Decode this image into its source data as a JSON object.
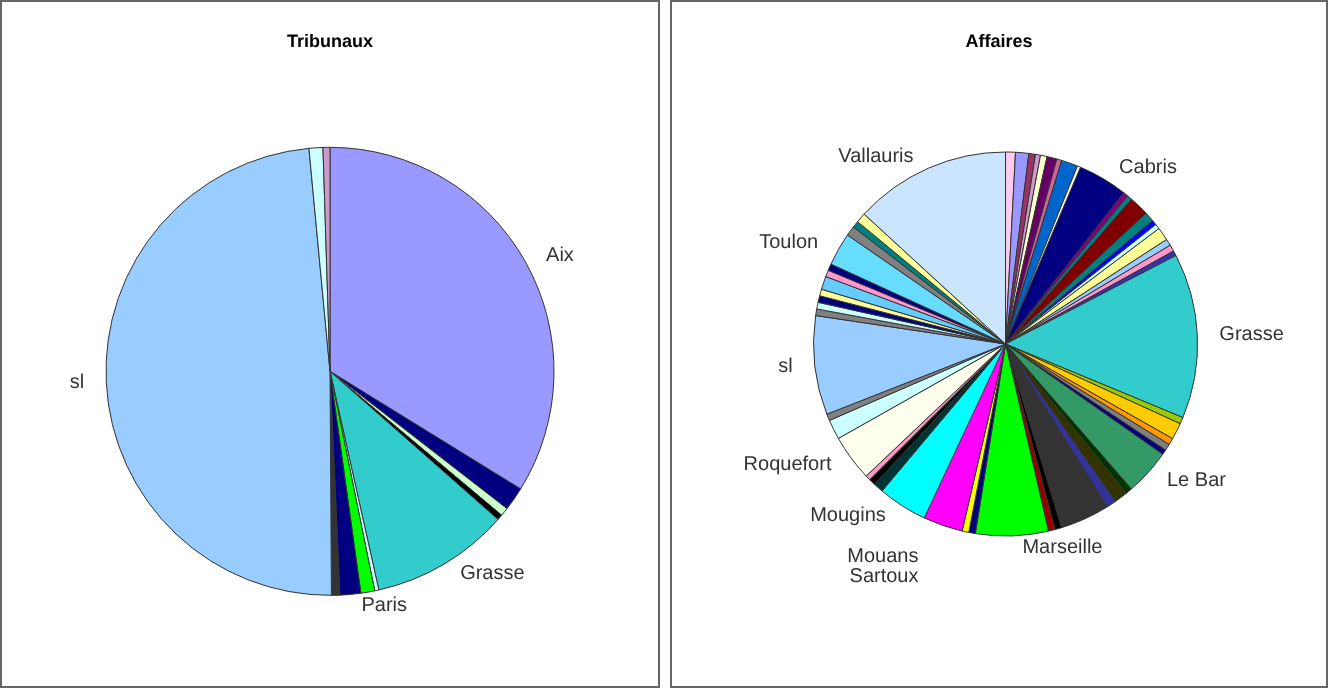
{
  "chart_data": [
    {
      "type": "pie",
      "title": "Tribunaux",
      "categories": [
        "Aix",
        null,
        null,
        null,
        "Grasse",
        null,
        null,
        "Paris",
        null,
        "sl",
        null,
        null
      ],
      "values": [
        33.8,
        1.7,
        0.6,
        0.4,
        10,
        0.3,
        1,
        1.5,
        0.6,
        48.6,
        1,
        0.5
      ],
      "colors": [
        "#9999ff",
        "#000080",
        "#ccffcc",
        "#000000",
        "#33cccc",
        "#ccffff",
        "#00ff00",
        "#000080",
        "#333333",
        "#99ccff",
        "#ccffff",
        "#cc99cc"
      ]
    },
    {
      "type": "pie",
      "title": "Affaires",
      "categories": [
        null,
        null,
        null,
        null,
        null,
        null,
        null,
        null,
        null,
        "Cabris",
        null,
        null,
        null,
        null,
        null,
        null,
        null,
        null,
        null,
        null,
        "Grasse",
        null,
        null,
        null,
        null,
        null,
        "Le Bar",
        null,
        null,
        null,
        null,
        null,
        null,
        "Marseille",
        null,
        null,
        "Mouans\nSartoux",
        "Mougins",
        null,
        null,
        null,
        "Roquefort",
        null,
        null,
        "sl",
        null,
        null,
        null,
        null,
        null,
        null,
        null,
        "Toulon",
        null,
        null,
        null,
        "Vallauris"
      ],
      "values": [
        0.83,
        1.11,
        0.56,
        0.42,
        0.56,
        0.83,
        0.42,
        1.39,
        0.28,
        4.17,
        0.42,
        0.42,
        1.67,
        0.83,
        0.42,
        0.42,
        1.11,
        0.56,
        0.56,
        0.42,
        13.89,
        0.56,
        1.39,
        0.56,
        0.56,
        0.42,
        3.89,
        0.56,
        1.11,
        0.83,
        4.17,
        0.56,
        0.56,
        6.11,
        0.56,
        0.56,
        3.33,
        4.17,
        0.83,
        0.56,
        0.42,
        3.89,
        1.67,
        0.56,
        8.33,
        0.56,
        0.56,
        0.56,
        0.56,
        1.11,
        0.56,
        0.56,
        2.78,
        0.83,
        0.56,
        0.83,
        13.19
      ],
      "colors": [
        "#ffccee",
        "#9999ff",
        "#993366",
        "#cc99cc",
        "#ffffcc",
        "#660066",
        "#cc6699",
        "#0066cc",
        "#ffffff",
        "#000080",
        "#800080",
        "#008080",
        "#800000",
        "#008080",
        "#0000ff",
        "#ccffff",
        "#ffff99",
        "#99ccff",
        "#ff99cc",
        "#3333aa",
        "#33cccc",
        "#99cc00",
        "#ffcc00",
        "#ff9900",
        "#808080",
        "#000080",
        "#339966",
        "#003300",
        "#333300",
        "#333399",
        "#333333",
        "#000000",
        "#990000",
        "#00ff00",
        "#000080",
        "#ffff00",
        "#ff00ff",
        "#00ffff",
        "#003333",
        "#000000",
        "#ff99cc",
        "#ffffee",
        "#ccffff",
        "#808080",
        "#99ccff",
        "#808080",
        "#ccffff",
        "#000080",
        "#ffff99",
        "#66ccff",
        "#ff99cc",
        "#000080",
        "#66ddff",
        "#808080",
        "#008080",
        "#ffff99",
        "#cce5ff"
      ]
    }
  ]
}
